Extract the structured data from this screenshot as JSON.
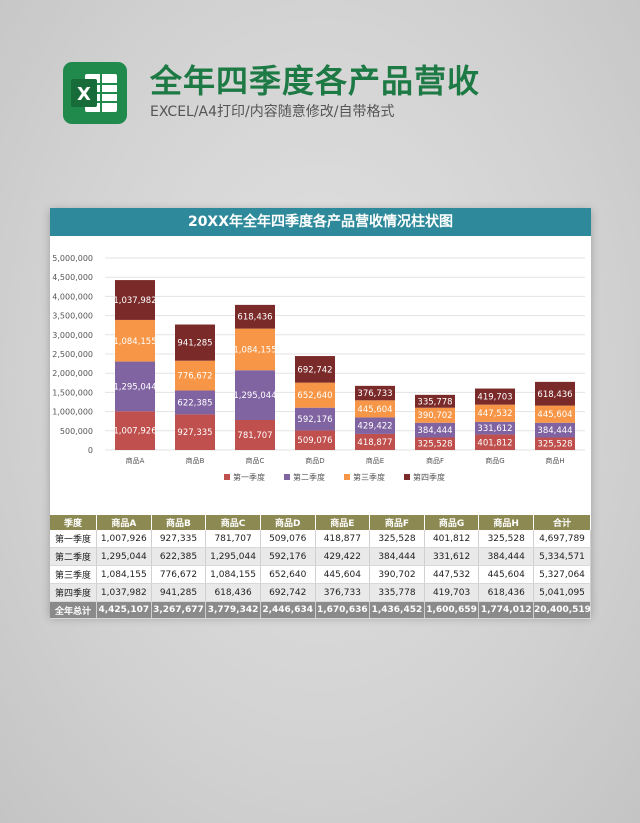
{
  "header": {
    "title": "全年四季度各产品营收",
    "subtitle": "EXCEL/A4打印/内容随意修改/自带格式"
  },
  "chart_data": {
    "type": "bar",
    "stacked": true,
    "title": "20XX年全年四季度各产品营收情况柱状图",
    "categories": [
      "商品A",
      "商品B",
      "商品C",
      "商品D",
      "商品E",
      "商品F",
      "商品G",
      "商品H"
    ],
    "series": [
      {
        "name": "第一季度",
        "color": "#c0504d",
        "values": [
          1007926,
          927335,
          781707,
          509076,
          418877,
          325528,
          401812,
          325528
        ]
      },
      {
        "name": "第二季度",
        "color": "#8064a2",
        "values": [
          1295044,
          622385,
          1295044,
          592176,
          429422,
          384444,
          331612,
          384444
        ]
      },
      {
        "name": "第三季度",
        "color": "#f79646",
        "values": [
          1084155,
          776672,
          1084155,
          652640,
          445604,
          390702,
          447532,
          445604
        ]
      },
      {
        "name": "第四季度",
        "color": "#7b2a2a",
        "values": [
          1037982,
          941285,
          618436,
          692742,
          376733,
          335778,
          419703,
          618436
        ]
      }
    ],
    "y_ticks": [
      "0",
      "500,000",
      "1,000,000",
      "1,500,000",
      "2,000,000",
      "2,500,000",
      "3,000,000",
      "3,500,000",
      "4,000,000",
      "4,500,000",
      "5,000,000"
    ],
    "ylim": [
      0,
      5000000
    ],
    "grid": true,
    "legend_position": "bottom"
  },
  "table": {
    "headers": [
      "季度",
      "商品A",
      "商品B",
      "商品C",
      "商品D",
      "商品E",
      "商品F",
      "商品G",
      "商品H",
      "合计"
    ],
    "rows": [
      [
        "第一季度",
        "1,007,926",
        "927,335",
        "781,707",
        "509,076",
        "418,877",
        "325,528",
        "401,812",
        "325,528",
        "4,697,789"
      ],
      [
        "第二季度",
        "1,295,044",
        "622,385",
        "1,295,044",
        "592,176",
        "429,422",
        "384,444",
        "331,612",
        "384,444",
        "5,334,571"
      ],
      [
        "第三季度",
        "1,084,155",
        "776,672",
        "1,084,155",
        "652,640",
        "445,604",
        "390,702",
        "447,532",
        "445,604",
        "5,327,064"
      ],
      [
        "第四季度",
        "1,037,982",
        "941,285",
        "618,436",
        "692,742",
        "376,733",
        "335,778",
        "419,703",
        "618,436",
        "5,041,095"
      ]
    ],
    "total": [
      "全年总计",
      "4,425,107",
      "3,267,677",
      "3,779,342",
      "2,446,634",
      "1,670,636",
      "1,436,452",
      "1,600,659",
      "1,774,012",
      "20,400,519"
    ]
  }
}
